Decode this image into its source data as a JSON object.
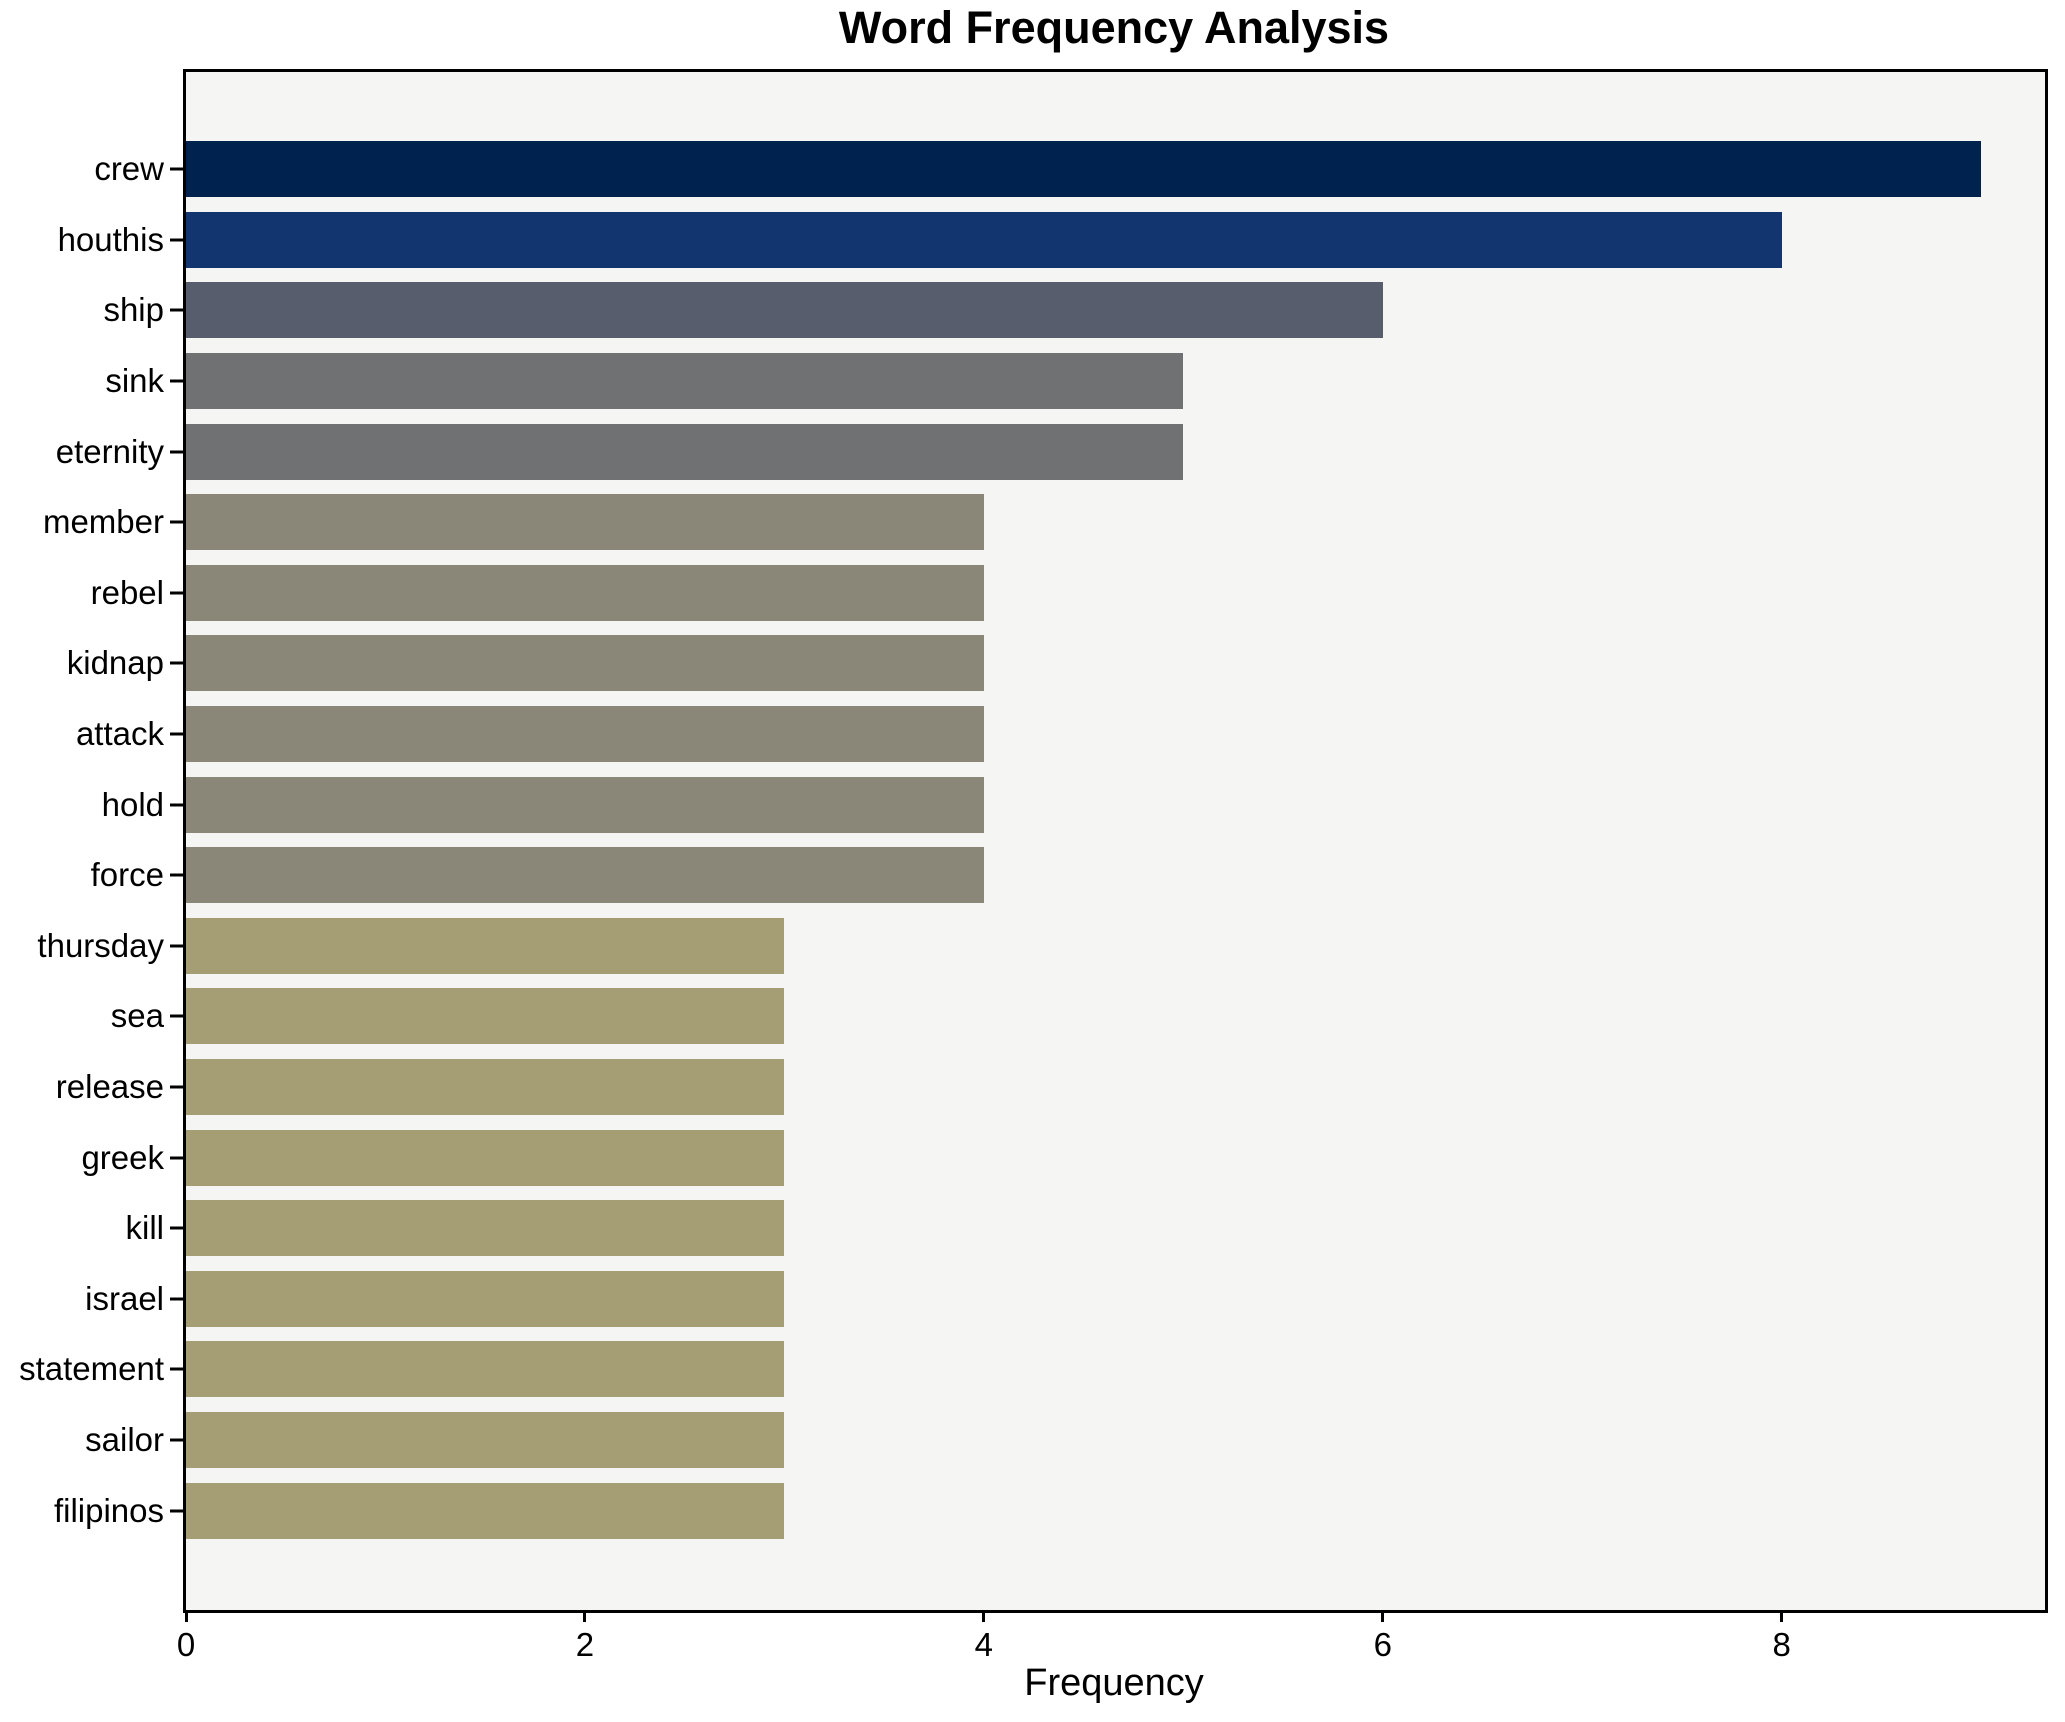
{
  "chart_data": {
    "type": "bar",
    "orientation": "horizontal",
    "title": "Word Frequency Analysis",
    "xlabel": "Frequency",
    "ylabel": "",
    "categories": [
      "crew",
      "houthis",
      "ship",
      "sink",
      "eternity",
      "member",
      "rebel",
      "kidnap",
      "attack",
      "hold",
      "force",
      "thursday",
      "sea",
      "release",
      "greek",
      "kill",
      "israel",
      "statement",
      "sailor",
      "filipinos"
    ],
    "values": [
      9,
      8,
      6,
      5,
      5,
      4,
      4,
      4,
      4,
      4,
      4,
      3,
      3,
      3,
      3,
      3,
      3,
      3,
      3,
      3
    ],
    "bar_colors": [
      "#00224e",
      "#123570",
      "#575d6d",
      "#707173",
      "#707173",
      "#8a8779",
      "#8a8779",
      "#8a8779",
      "#8a8779",
      "#8a8779",
      "#8a8779",
      "#a59d74",
      "#a59d74",
      "#a59d74",
      "#a59d74",
      "#a59d74",
      "#a59d74",
      "#a59d74",
      "#a59d74",
      "#a59d74"
    ],
    "xticks": [
      0,
      2,
      4,
      6,
      8
    ],
    "xlim": [
      0,
      9.32
    ],
    "grid": false,
    "legend": "none",
    "plot_background": "#f5f5f3",
    "figure_background": "#ffffff",
    "text_color": "#000000"
  }
}
